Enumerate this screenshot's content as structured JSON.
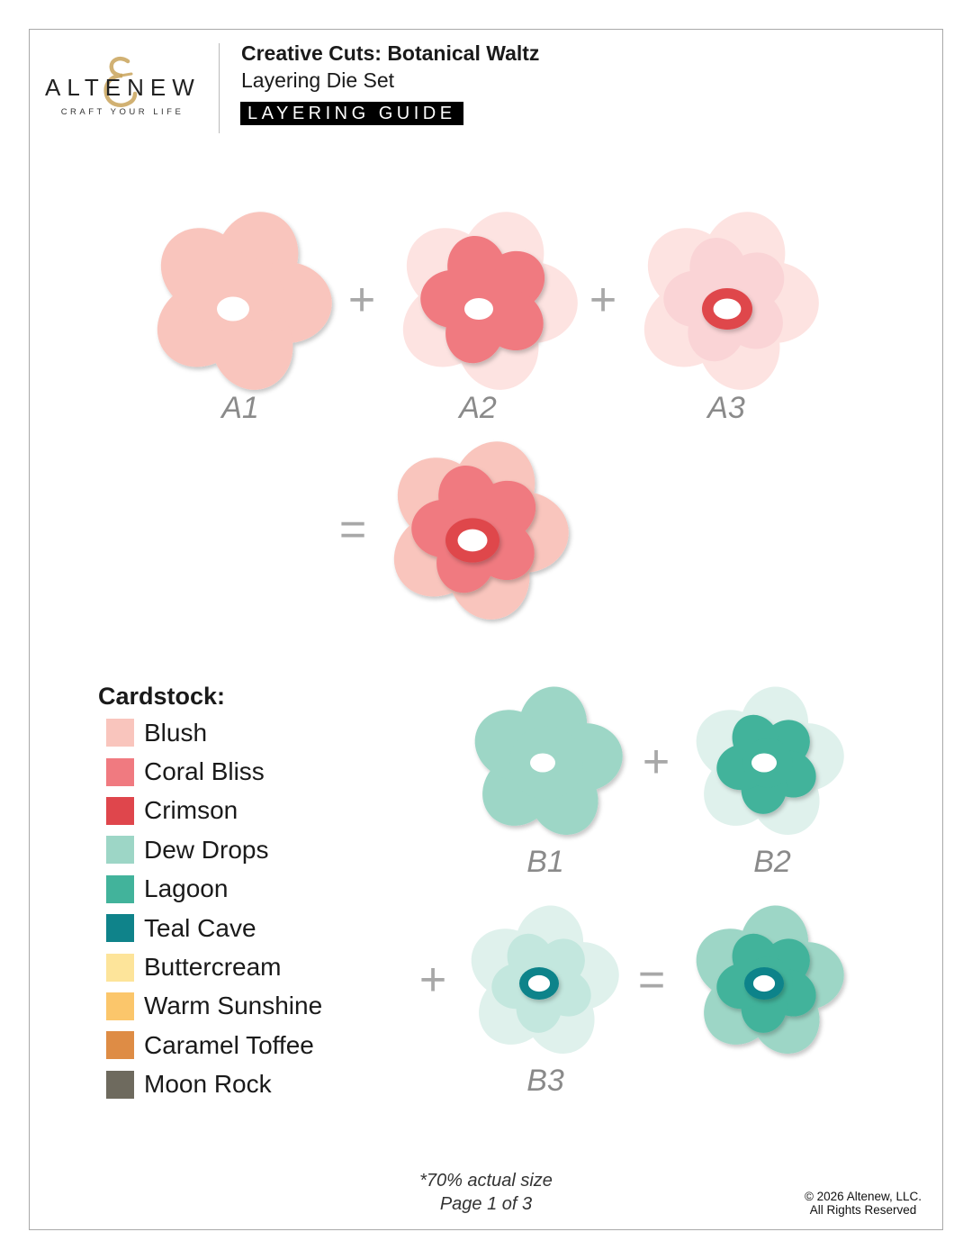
{
  "header": {
    "brand": "ALTENEW",
    "brand_tagline": "CRAFT YOUR LIFE",
    "title": "Creative Cuts: Botanical Waltz",
    "subtitle": "Layering Die Set",
    "badge": "LAYERING GUIDE"
  },
  "colors": {
    "blush": "#f9c5bd",
    "coral_bliss": "#f07a80",
    "crimson": "#df464c",
    "dew_drops": "#9dd6c6",
    "lagoon": "#42b39b",
    "teal_cave": "#0f838a",
    "faded_pink": "#fde3e1",
    "faded_pink2": "#fad4d6",
    "faded_mint": "#dff1ec",
    "faded_mint2": "#c3e7de",
    "operator": "#a8a8a8",
    "label": "#8a8a8a"
  },
  "layers": {
    "a_labels": [
      "A1",
      "A2",
      "A3"
    ],
    "b_labels": [
      "B1",
      "B2",
      "B3"
    ],
    "plus": "+",
    "equals": "="
  },
  "cardstock": {
    "title": "Cardstock:",
    "items": [
      {
        "name": "Blush",
        "color": "#f9c5bd"
      },
      {
        "name": "Coral Bliss",
        "color": "#f07a80"
      },
      {
        "name": "Crimson",
        "color": "#df464c"
      },
      {
        "name": "Dew Drops",
        "color": "#9dd6c6"
      },
      {
        "name": "Lagoon",
        "color": "#42b39b"
      },
      {
        "name": "Teal Cave",
        "color": "#0f838a"
      },
      {
        "name": "Buttercream",
        "color": "#fde49a"
      },
      {
        "name": "Warm Sunshine",
        "color": "#fbc66b"
      },
      {
        "name": "Caramel Toffee",
        "color": "#de8c45"
      },
      {
        "name": "Moon Rock",
        "color": "#6e6a5e"
      }
    ]
  },
  "footer": {
    "scale_note": "*70% actual size",
    "page": "Page 1 of 3",
    "copyright": "© 2026 Altenew, LLC.",
    "rights": "All Rights Reserved"
  }
}
